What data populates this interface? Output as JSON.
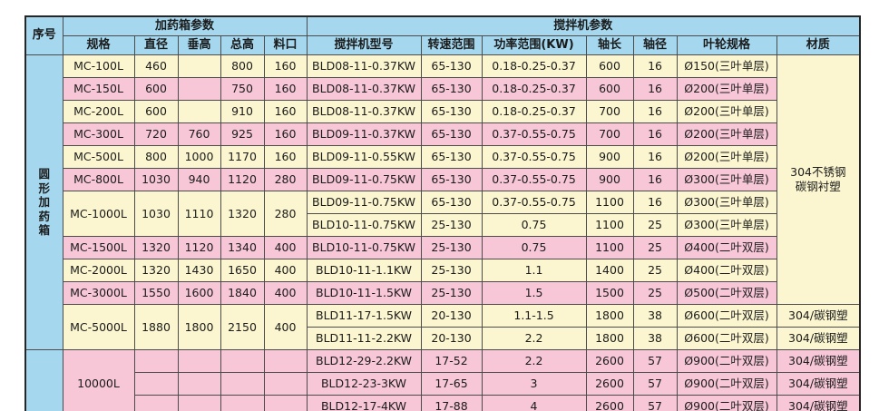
{
  "colors": {
    "header_blue": "#a5d8ef",
    "row_yellow": "#fbf6cf",
    "row_pink": "#f7c7d8",
    "inner_border": "#4c4c4c",
    "outer_border": "#262626",
    "text": "#1b1b1b"
  },
  "table": {
    "header": {
      "seq": "序号",
      "tank_group": "加药箱参数",
      "mixer_group": "搅拌机参数",
      "columns": [
        "规格",
        "直径",
        "垂高",
        "总高",
        "料口",
        "搅拌机型号",
        "转速范围",
        "功率范围(KW)",
        "轴长",
        "轴径",
        "叶轮规格",
        "材质"
      ]
    },
    "rows": [
      {
        "bg": "y",
        "cells": [
          {
            "t": "圆\n形\n加\n药\n箱",
            "rs": 13,
            "bg": "blue",
            "name": "category-cell"
          },
          {
            "t": "MC-100L"
          },
          {
            "t": "460"
          },
          {
            "t": ""
          },
          {
            "t": "800"
          },
          {
            "t": "160"
          },
          {
            "t": "BLD08-11-0.37KW"
          },
          {
            "t": "65-130"
          },
          {
            "t": "0.18-0.25-0.37"
          },
          {
            "t": "600"
          },
          {
            "t": "16"
          },
          {
            "t": "Ø150(三叶单层)"
          },
          {
            "t": "304不锈钢\n碳钢衬塑",
            "rs": 11,
            "bg": "yellow",
            "name": "material-merged-cell"
          }
        ]
      },
      {
        "bg": "p",
        "cells": [
          {
            "t": "MC-150L"
          },
          {
            "t": "600"
          },
          {
            "t": ""
          },
          {
            "t": "750"
          },
          {
            "t": "160"
          },
          {
            "t": "BLD08-11-0.37KW"
          },
          {
            "t": "65-130"
          },
          {
            "t": "0.18-0.25-0.37"
          },
          {
            "t": "600"
          },
          {
            "t": "16"
          },
          {
            "t": "Ø200(三叶单层)"
          }
        ]
      },
      {
        "bg": "y",
        "cells": [
          {
            "t": "MC-200L"
          },
          {
            "t": "600"
          },
          {
            "t": ""
          },
          {
            "t": "910"
          },
          {
            "t": "160"
          },
          {
            "t": "BLD08-11-0.37KW"
          },
          {
            "t": "65-130"
          },
          {
            "t": "0.18-0.25-0.37"
          },
          {
            "t": "700"
          },
          {
            "t": "16"
          },
          {
            "t": "Ø200(三叶单层)"
          }
        ]
      },
      {
        "bg": "p",
        "cells": [
          {
            "t": "MC-300L"
          },
          {
            "t": "720"
          },
          {
            "t": "760"
          },
          {
            "t": "925"
          },
          {
            "t": "160"
          },
          {
            "t": "BLD09-11-0.37KW"
          },
          {
            "t": "65-130"
          },
          {
            "t": "0.37-0.55-0.75"
          },
          {
            "t": "700"
          },
          {
            "t": "16"
          },
          {
            "t": "Ø200(三叶单层)"
          }
        ]
      },
      {
        "bg": "y",
        "cells": [
          {
            "t": "MC-500L"
          },
          {
            "t": "800"
          },
          {
            "t": "1000"
          },
          {
            "t": "1170"
          },
          {
            "t": "160"
          },
          {
            "t": "BLD09-11-0.55KW"
          },
          {
            "t": "65-130"
          },
          {
            "t": "0.37-0.55-0.75"
          },
          {
            "t": "900"
          },
          {
            "t": "16"
          },
          {
            "t": "Ø200(三叶单层)"
          }
        ]
      },
      {
        "bg": "p",
        "cells": [
          {
            "t": "MC-800L"
          },
          {
            "t": "1030"
          },
          {
            "t": "940"
          },
          {
            "t": "1120"
          },
          {
            "t": "280"
          },
          {
            "t": "BLD09-11-0.75KW"
          },
          {
            "t": "65-130"
          },
          {
            "t": "0.37-0.55-0.75"
          },
          {
            "t": "900"
          },
          {
            "t": "16"
          },
          {
            "t": "Ø300(三叶单层)"
          }
        ]
      },
      {
        "bg": "y",
        "cells": [
          {
            "t": "MC-1000L",
            "rs": 2
          },
          {
            "t": "1030",
            "rs": 2
          },
          {
            "t": "1110",
            "rs": 2
          },
          {
            "t": "1320",
            "rs": 2
          },
          {
            "t": "280",
            "rs": 2
          },
          {
            "t": "BLD09-11-0.75KW"
          },
          {
            "t": "65-130"
          },
          {
            "t": "0.37-0.55-0.75"
          },
          {
            "t": "1100"
          },
          {
            "t": "16"
          },
          {
            "t": "Ø300(三叶单层)"
          }
        ]
      },
      {
        "bg": "y",
        "cells": [
          {
            "t": "BLD10-11-0.75KW"
          },
          {
            "t": "25-130"
          },
          {
            "t": "0.75"
          },
          {
            "t": "1100"
          },
          {
            "t": "25"
          },
          {
            "t": "Ø300(三叶单层)"
          }
        ]
      },
      {
        "bg": "p",
        "cells": [
          {
            "t": "MC-1500L"
          },
          {
            "t": "1320"
          },
          {
            "t": "1120"
          },
          {
            "t": "1340"
          },
          {
            "t": "400"
          },
          {
            "t": "BLD10-11-0.75KW"
          },
          {
            "t": "25-130"
          },
          {
            "t": "0.75"
          },
          {
            "t": "1100"
          },
          {
            "t": "25"
          },
          {
            "t": "Ø400(二叶双层)"
          }
        ]
      },
      {
        "bg": "y",
        "cells": [
          {
            "t": "MC-2000L"
          },
          {
            "t": "1320"
          },
          {
            "t": "1430"
          },
          {
            "t": "1650"
          },
          {
            "t": "400"
          },
          {
            "t": "BLD10-11-1.1KW"
          },
          {
            "t": "25-130"
          },
          {
            "t": "1.1"
          },
          {
            "t": "1400"
          },
          {
            "t": "25"
          },
          {
            "t": "Ø400(二叶双层)"
          }
        ]
      },
      {
        "bg": "p",
        "cells": [
          {
            "t": "MC-3000L"
          },
          {
            "t": "1550"
          },
          {
            "t": "1600"
          },
          {
            "t": "1840"
          },
          {
            "t": "400"
          },
          {
            "t": "BLD10-11-1.5KW"
          },
          {
            "t": "25-130"
          },
          {
            "t": "1.5"
          },
          {
            "t": "1500"
          },
          {
            "t": "25"
          },
          {
            "t": "Ø500(二叶双层)"
          }
        ]
      },
      {
        "bg": "y",
        "cells": [
          {
            "t": "MC-5000L",
            "rs": 2
          },
          {
            "t": "1880",
            "rs": 2
          },
          {
            "t": "1800",
            "rs": 2
          },
          {
            "t": "2150",
            "rs": 2
          },
          {
            "t": "400",
            "rs": 2
          },
          {
            "t": "BLD11-17-1.5KW"
          },
          {
            "t": "20-130"
          },
          {
            "t": "1.1-1.5"
          },
          {
            "t": "1800"
          },
          {
            "t": "38"
          },
          {
            "t": "Ø600(二叶双层)"
          },
          {
            "t": "304/碳钢塑"
          }
        ]
      },
      {
        "bg": "y",
        "cells": [
          {
            "t": "BLD11-11-2.2KW"
          },
          {
            "t": "20-130"
          },
          {
            "t": "2.2"
          },
          {
            "t": "1800"
          },
          {
            "t": "38"
          },
          {
            "t": "Ø600(二叶双层)"
          },
          {
            "t": "304/碳钢塑"
          }
        ]
      },
      {
        "bg": "p",
        "cells": [
          {
            "t": "",
            "rs": 3,
            "bg": "blue",
            "name": "seq-cell"
          },
          {
            "t": "10000L",
            "rs": 3
          },
          {
            "t": ""
          },
          {
            "t": ""
          },
          {
            "t": ""
          },
          {
            "t": ""
          },
          {
            "t": "BLD12-29-2.2KW"
          },
          {
            "t": "17-52"
          },
          {
            "t": "2.2"
          },
          {
            "t": "2600"
          },
          {
            "t": "57"
          },
          {
            "t": "Ø900(二叶双层)"
          },
          {
            "t": "304/碳钢塑"
          }
        ]
      },
      {
        "bg": "p",
        "cells": [
          {
            "t": ""
          },
          {
            "t": ""
          },
          {
            "t": ""
          },
          {
            "t": ""
          },
          {
            "t": "BLD12-23-3KW"
          },
          {
            "t": "17-65"
          },
          {
            "t": "3"
          },
          {
            "t": "2600"
          },
          {
            "t": "57"
          },
          {
            "t": "Ø900(二叶双层)"
          },
          {
            "t": "304/碳钢塑"
          }
        ]
      },
      {
        "bg": "p",
        "cells": [
          {
            "t": ""
          },
          {
            "t": ""
          },
          {
            "t": ""
          },
          {
            "t": ""
          },
          {
            "t": "BLD12-17-4KW"
          },
          {
            "t": "17-88"
          },
          {
            "t": "4"
          },
          {
            "t": "2600"
          },
          {
            "t": "57"
          },
          {
            "t": "Ø900(二叶双层)"
          },
          {
            "t": "304/碳钢塑"
          }
        ]
      }
    ]
  }
}
